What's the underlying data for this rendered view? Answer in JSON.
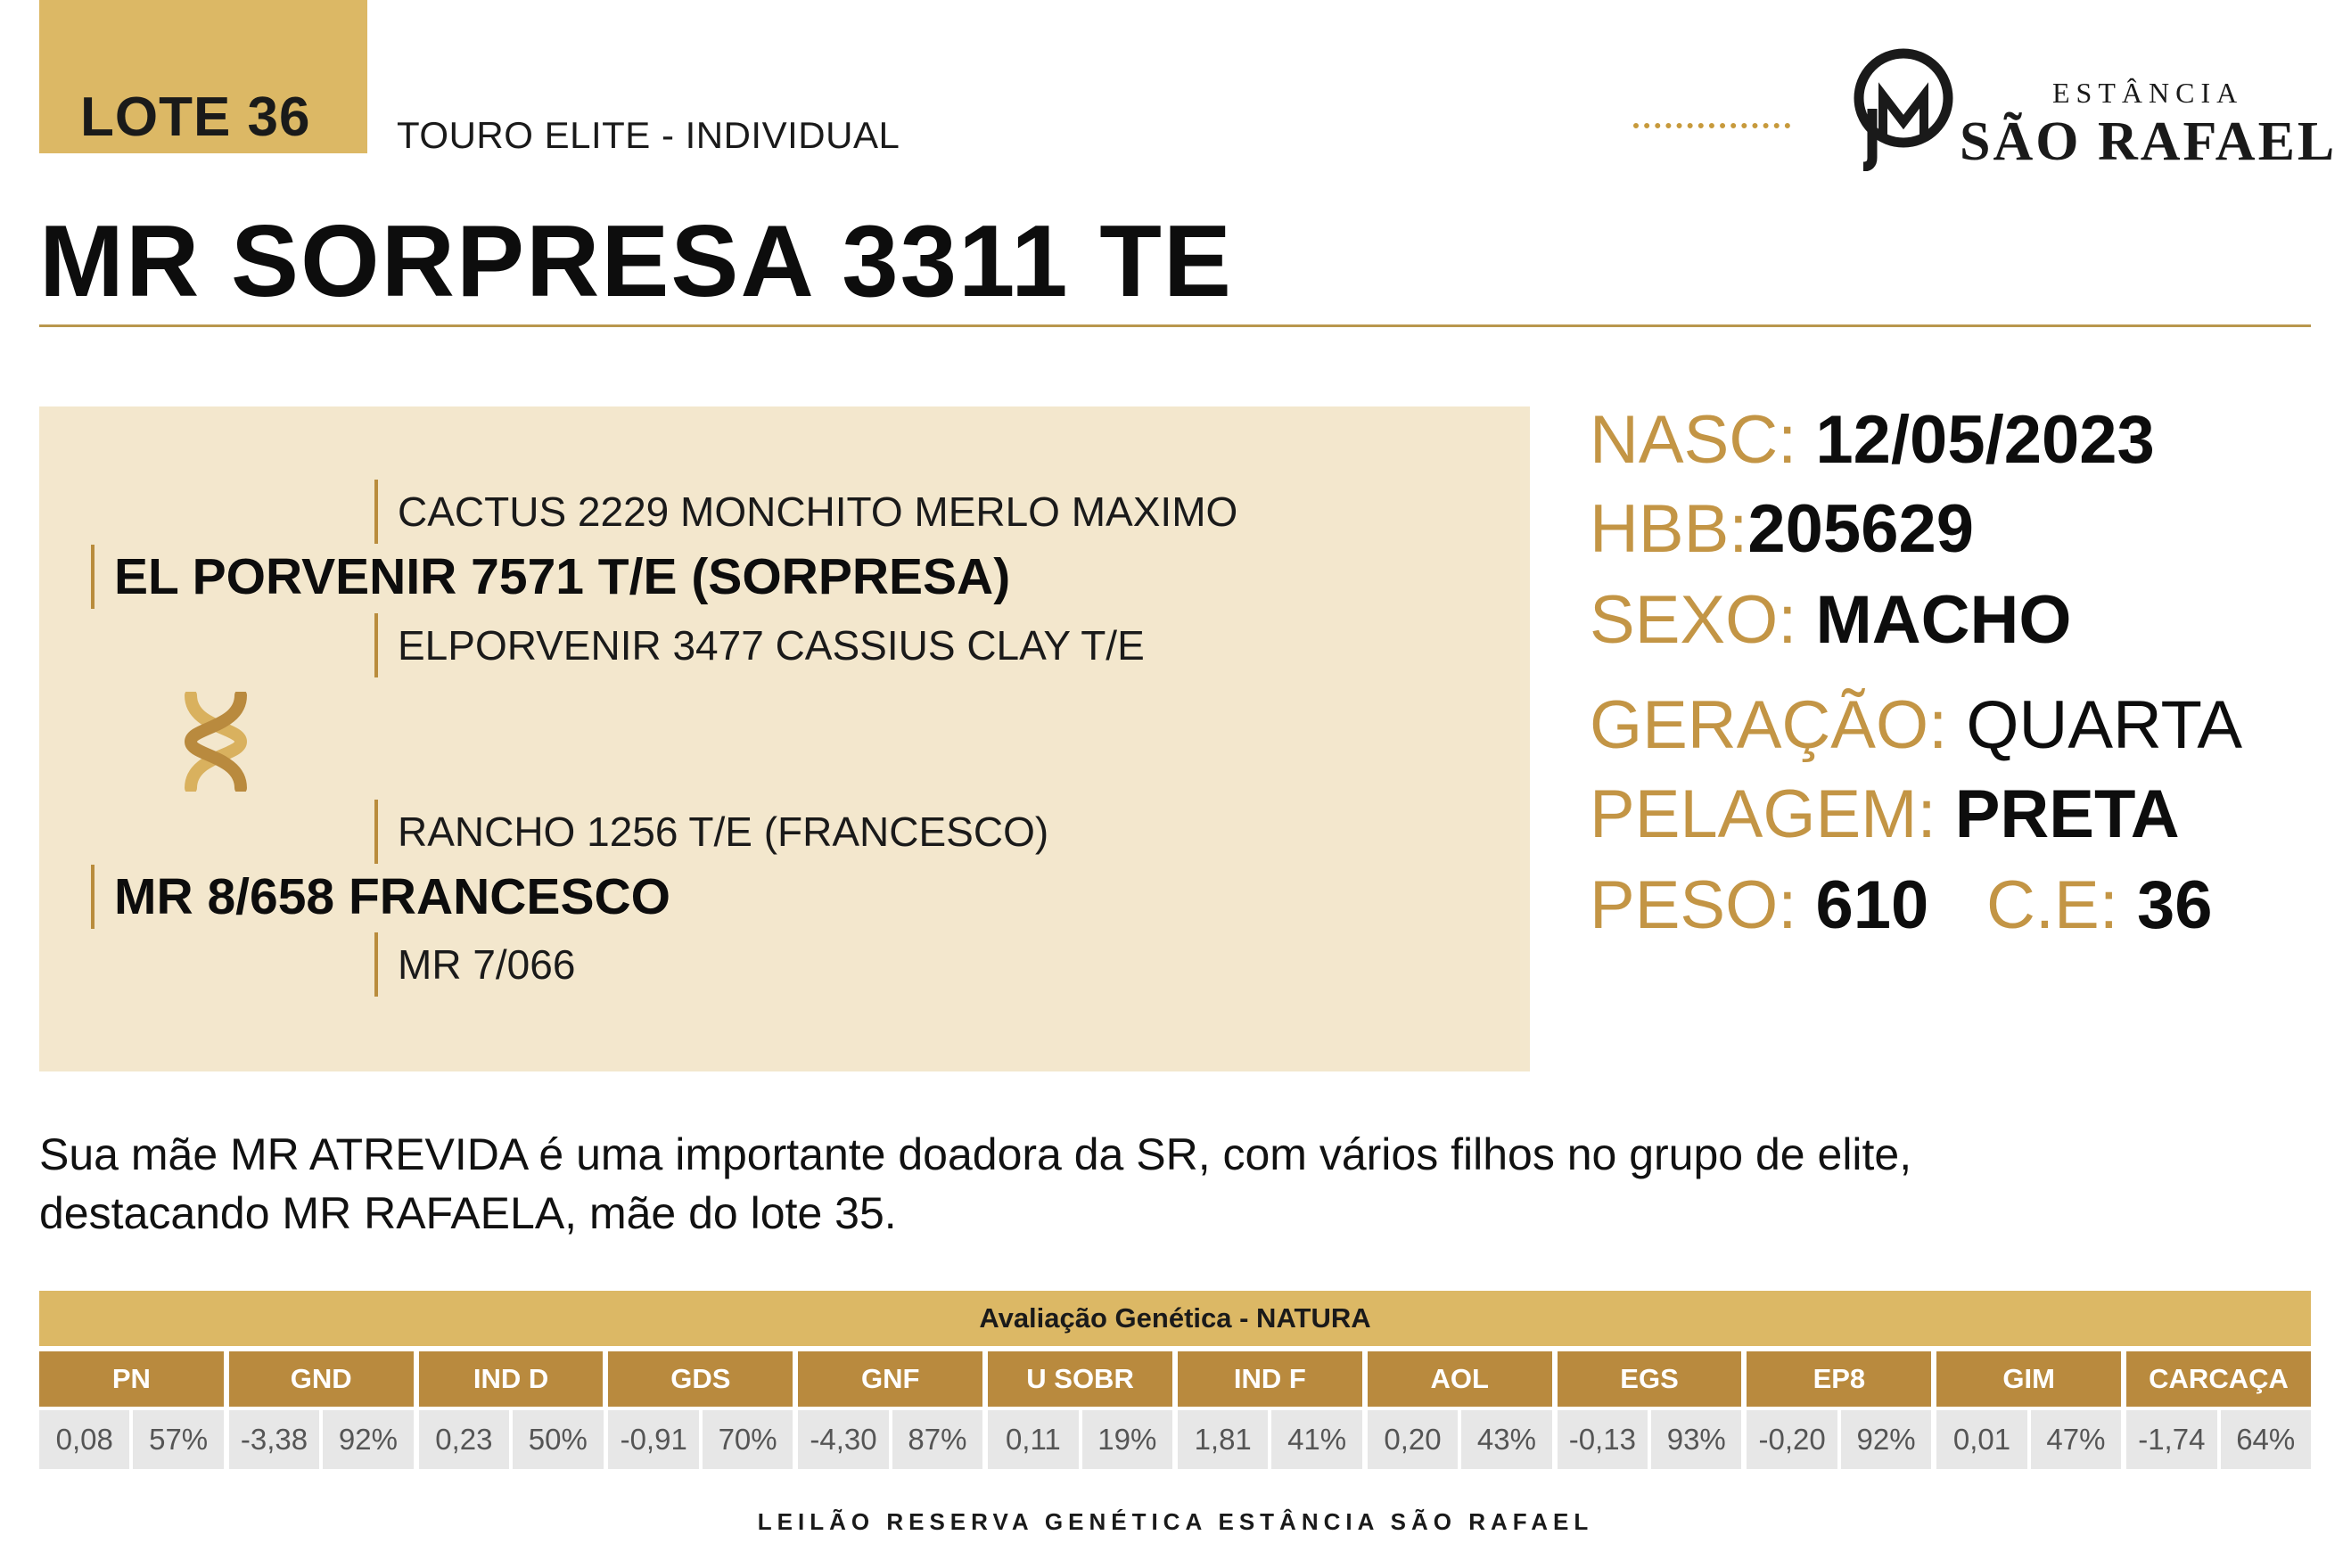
{
  "header": {
    "lote": "LOTE 36",
    "category": "TOURO ELITE - INDIVIDUAL",
    "logo_small": "ESTÂNCIA",
    "logo_big": "SÃO RAFAEL",
    "logo_icon": "sr-monogram-icon"
  },
  "animal_name": "MR SORPRESA 3311 TE",
  "pedigree": {
    "sire_sire": "CACTUS 2229 MONCHITO MERLO MAXIMO",
    "sire": "EL PORVENIR 7571 T/E (SORPRESA)",
    "sire_dam": "ELPORVENIR 3477 CASSIUS CLAY T/E",
    "cross_icon": "dna-icon",
    "dam_sire": "RANCHO 1256 T/E (FRANCESCO)",
    "dam": "MR 8/658 FRANCESCO",
    "dam_dam": "MR 7/066"
  },
  "info": {
    "nasc_label": "NASC:",
    "nasc_value": "12/05/2023",
    "hbb_label": "HBB:",
    "hbb_value": "205629",
    "sexo_label": "SEXO:",
    "sexo_value": "MACHO",
    "geracao_label": "GERAÇÃO:",
    "geracao_value": "QUARTA",
    "pelagem_label": "PELAGEM:",
    "pelagem_value": "PRETA",
    "peso_label": "PESO:",
    "peso_value": "610",
    "ce_label": "C.E:",
    "ce_value": "36"
  },
  "description_line1": "Sua mãe  MR ATREVIDA é uma importante doadora da SR, com vários filhos no grupo de elite,",
  "description_line2": "destacando MR RAFAELA, mãe do lote 35.",
  "genetic": {
    "title": "Avaliação Genética - NATURA",
    "headers": [
      "PN",
      "GND",
      "IND D",
      "GDS",
      "GNF",
      "U SOBR",
      "IND F",
      "AOL",
      "EGS",
      "EP8",
      "GIM",
      "CARCAÇA"
    ],
    "values": [
      [
        "0,08",
        "57%"
      ],
      [
        "-3,38",
        "92%"
      ],
      [
        "0,23",
        "50%"
      ],
      [
        "-0,91",
        "70%"
      ],
      [
        "-4,30",
        "87%"
      ],
      [
        "0,11",
        "19%"
      ],
      [
        "1,81",
        "41%"
      ],
      [
        "0,20",
        "43%"
      ],
      [
        "-0,13",
        "93%"
      ],
      [
        "-0,20",
        "92%"
      ],
      [
        "0,01",
        "47%"
      ],
      [
        "-1,74",
        "64%"
      ]
    ]
  },
  "footer": "LEILÃO RESERVA GENÉTICA  ESTÂNCIA  SÃO  RAFAEL",
  "colors": {
    "gold": "#dcb865",
    "gold_dark": "#b98a3e",
    "label_gold": "#c39545",
    "panel": "#f3e7cd"
  }
}
